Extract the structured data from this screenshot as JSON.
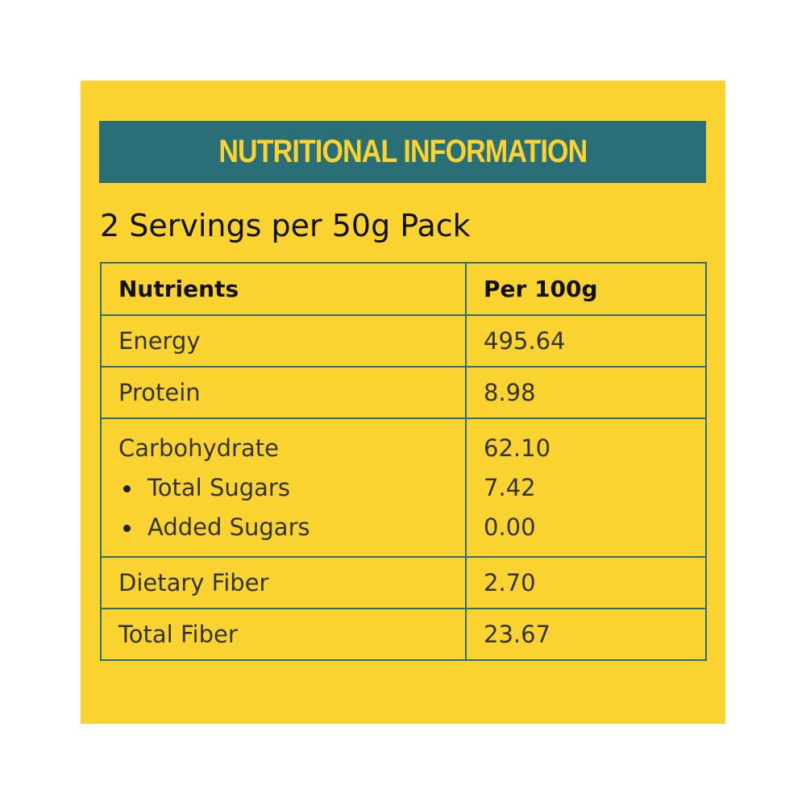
{
  "header": {
    "title": "NUTRITIONAL INFORMATION",
    "subtitle": "2 Servings per 50g Pack"
  },
  "table": {
    "columns": [
      "Nutrients",
      "Per 100g"
    ],
    "rows": [
      {
        "nutrient": "Energy",
        "value": "495.64"
      },
      {
        "nutrient": "Protein",
        "value": "8.98"
      },
      {
        "nutrient": "Carbohydrate",
        "value": "62.10",
        "sub": [
          {
            "nutrient": "Total Sugars",
            "value": "7.42"
          },
          {
            "nutrient": "Added Sugars",
            "value": "0.00"
          }
        ]
      },
      {
        "nutrient": "Dietary Fiber",
        "value": "2.70"
      },
      {
        "nutrient": "Total Fiber",
        "value": "23.67"
      }
    ]
  }
}
